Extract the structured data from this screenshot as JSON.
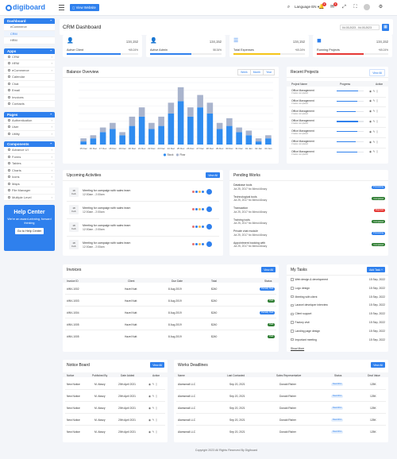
{
  "brand": {
    "name": "digiboard"
  },
  "topbar": {
    "view_website": "View Website",
    "language": "Language",
    "lang_code": "EN",
    "notif_count_1": "3",
    "notif_count_2": "4"
  },
  "sidebar": {
    "dashboard": {
      "title": "Dashboard",
      "items": [
        "eCommerce",
        "CRM",
        "HRM"
      ]
    },
    "apps": {
      "title": "Apps",
      "items": [
        "CRM",
        "HRM",
        "eCommerce",
        "Calendar",
        "Chat",
        "Email",
        "Invoices",
        "Contacts"
      ]
    },
    "pages": {
      "title": "Pages",
      "items": [
        "Authentication",
        "User",
        "Utility"
      ]
    },
    "components": {
      "title": "Components",
      "items": [
        "Advance UI",
        "Forms",
        "Tables",
        "Charts",
        "Icons",
        "Maps",
        "File Manager",
        "Multiple Level"
      ]
    }
  },
  "help": {
    "title": "Help Center",
    "text": "We're an award-winning, forward thinking",
    "button": "Go to Help Center"
  },
  "header": {
    "title": "CRM Dashboard",
    "daterange": "04.03.2023 - 04.03.2023"
  },
  "stats": [
    {
      "value": "134,152",
      "label": "Active Client",
      "pct": "+65.24%",
      "progress": 0.75,
      "color": "#2f80ed"
    },
    {
      "value": "134,152",
      "label": "Active Admin",
      "pct": "58.34%",
      "progress": 0.58,
      "color": "#2f80ed"
    },
    {
      "value": "134,152",
      "label": "Total Expenses",
      "pct": "+65.24%",
      "progress": 0.65,
      "color": "#f5c518"
    },
    {
      "value": "134,152",
      "label": "Running Projects",
      "pct": "+65.24%",
      "progress": 0.65,
      "color": "#e53935"
    }
  ],
  "balance": {
    "title": "Balance Overview",
    "tabs": [
      "Week",
      "Month",
      "Year"
    ]
  },
  "chart_data": {
    "type": "bar",
    "categories": [
      "15 Dec",
      "16 Dec",
      "17 Dec",
      "18 Dec",
      "19 Dec",
      "20 Dec",
      "21 Dec",
      "22 Dec",
      "23 Dec",
      "24 Dec",
      "25 Dec",
      "26 Dec",
      "27 Dec",
      "28 Dec",
      "29 Dec",
      "30 Dec",
      "31 Dec",
      "01 Jan",
      "02 Jan",
      "03 Jan"
    ],
    "series": [
      {
        "name": "Stock",
        "values": [
          2,
          4,
          8,
          10,
          6,
          12,
          18,
          10,
          12,
          20,
          28,
          18,
          24,
          20,
          10,
          12,
          8,
          6,
          2,
          4
        ]
      },
      {
        "name": "Flow",
        "values": [
          2,
          2,
          3,
          4,
          2,
          6,
          6,
          4,
          6,
          7,
          9,
          6,
          8,
          7,
          4,
          5,
          3,
          3,
          2,
          2
        ]
      }
    ],
    "stacked": true,
    "colors": [
      "#2f8cf0",
      "#a9b4cd"
    ],
    "ylim": [
      0,
      40
    ],
    "legend": "bottom"
  },
  "recent": {
    "title": "Recent Projects",
    "view_all": "View All",
    "cols": [
      "Project Name",
      "Progress",
      "Action"
    ],
    "rows": [
      {
        "name": "Office Management",
        "sub": "3 tasks completed",
        "progress": 0.8
      },
      {
        "name": "Office Management",
        "sub": "3 tasks completed",
        "progress": 0.75
      },
      {
        "name": "Office Management",
        "sub": "3 tasks completed",
        "progress": 0.7
      },
      {
        "name": "Office Management",
        "sub": "3 tasks completed",
        "progress": 0.8
      },
      {
        "name": "Office Management",
        "sub": "3 tasks completed",
        "progress": 0.75
      },
      {
        "name": "Office Management",
        "sub": "3 tasks completed",
        "progress": 0.7
      },
      {
        "name": "Office Management",
        "sub": "3 tasks completed",
        "progress": 0.75
      }
    ]
  },
  "activities": {
    "title": "Upcoming Activities",
    "view_all": "View All",
    "rows": [
      {
        "day": "18",
        "mon": "Feb",
        "title": "Meeting for campaign with sales team",
        "time": "12:00am - 2:00am"
      },
      {
        "day": "18",
        "mon": "Feb",
        "title": "Meeting for campaign with sales team",
        "time": "12:00am - 2:00am"
      },
      {
        "day": "18",
        "mon": "Feb",
        "title": "Meeting for campaign with sales team",
        "time": "12:00am - 2:00am"
      },
      {
        "day": "18",
        "mon": "Feb",
        "title": "Meeting for campaign with sales team",
        "time": "12:00am - 2:00am"
      }
    ]
  },
  "pending": {
    "title": "Pending Works",
    "rows": [
      {
        "title": "Database tools",
        "date": "Jul 25, 2017 for Alimul Alrazy",
        "status": "Processing",
        "color": "#2f80ed"
      },
      {
        "title": "Technological tools",
        "date": "Jul 25, 2017 for Alimul Alrazy",
        "status": "Completed",
        "color": "#2e7d32"
      },
      {
        "title": "Transaction",
        "date": "Jul 25, 2017 for Alimul Alrazy",
        "status": "Rejected",
        "color": "#e53935"
      },
      {
        "title": "Training tools",
        "date": "Jul 25, 2017 for Alimul Alrazy",
        "status": "Completed",
        "color": "#2e7d32"
      },
      {
        "title": "Private chat module",
        "date": "Jul 25, 2017 for Alimul Alrazy",
        "status": "Processing",
        "color": "#2f80ed"
      },
      {
        "title": "Appointment booking with",
        "date": "Jul 25, 2017 for Alimul Alrazy",
        "status": "Completed",
        "color": "#2e7d32"
      }
    ]
  },
  "invoices": {
    "title": "Invoices",
    "view_all": "View All",
    "cols": [
      "Invoice ID",
      "Client",
      "Due Date",
      "Total",
      "Status"
    ],
    "rows": [
      {
        "id": "#INV-1002",
        "client": "Hazel Nutt",
        "date": "8 Aug 2019",
        "total": "$240",
        "status": "Partially Paid",
        "color": "#2f80ed"
      },
      {
        "id": "#INV-1003",
        "client": "Hazel Nutt",
        "date": "8 Aug 2019",
        "total": "$240",
        "status": "Paid",
        "color": "#2e7d32"
      },
      {
        "id": "#INV-1004",
        "client": "Hazel Nutt",
        "date": "8 Aug 2019",
        "total": "$240",
        "status": "Partially Paid",
        "color": "#2f80ed"
      },
      {
        "id": "#INV-1005",
        "client": "Hazel Nutt",
        "date": "8 Aug 2019",
        "total": "$240",
        "status": "Paid",
        "color": "#2e7d32"
      },
      {
        "id": "#INV-1005",
        "client": "Hazel Nutt",
        "date": "8 Aug 2019",
        "total": "$240",
        "status": "Paid",
        "color": "#2e7d32"
      }
    ]
  },
  "tasks": {
    "title": "My Tasks",
    "add": "Add Task",
    "show_more": "Show More",
    "rows": [
      {
        "task": "Web design & development",
        "date": "15 Sep, 2022"
      },
      {
        "task": "Logo design",
        "date": "15 Sep, 2022"
      },
      {
        "task": "Meeting with client",
        "date": "15 Sep, 2022"
      },
      {
        "task": "Laravel developer interview",
        "date": "15 Sep, 2022"
      },
      {
        "task": "Client support",
        "date": "15 Sep, 2022"
      },
      {
        "task": "Factory visit",
        "date": "15 Sep, 2022"
      },
      {
        "task": "Landing page design",
        "date": "15 Sep, 2022"
      },
      {
        "task": "Important meeting",
        "date": "15 Sep, 2022"
      }
    ]
  },
  "notice": {
    "title": "Notice Board",
    "view_all": "View All",
    "cols": [
      "Notice",
      "Published By",
      "Date Added",
      "Action"
    ],
    "rows": [
      {
        "notice": "New Notice",
        "by": "M. Alrazy",
        "date": "20th April 2021"
      },
      {
        "notice": "New Notice",
        "by": "M. Alrazy",
        "date": "20th April 2021"
      },
      {
        "notice": "New Notice",
        "by": "M. Alrazy",
        "date": "20th April 2021"
      },
      {
        "notice": "New Notice",
        "by": "M. Alrazy",
        "date": "20th April 2021"
      },
      {
        "notice": "New Notice",
        "by": "M. Alrazy",
        "date": "20th April 2021"
      }
    ]
  },
  "deadlines": {
    "title": "Works Deadlines",
    "view_all": "View All",
    "cols": [
      "Name",
      "Last Contacted",
      "Sales Representative",
      "Status",
      "Deal Value"
    ],
    "rows": [
      {
        "name": "Alamsmall LLC",
        "contacted": "Sep 20, 2021",
        "rep": "Donald Risher",
        "status": "Deal Won",
        "value": "125K"
      },
      {
        "name": "Alamsmall LLC",
        "contacted": "Sep 20, 2021",
        "rep": "Donald Risher",
        "status": "Deal Won",
        "value": "125K"
      },
      {
        "name": "Alamsmall LLC",
        "contacted": "Sep 20, 2021",
        "rep": "Donald Risher",
        "status": "Deal Won",
        "value": "125K"
      },
      {
        "name": "Alamsmall LLC",
        "contacted": "Sep 20, 2021",
        "rep": "Donald Risher",
        "status": "Deal Won",
        "value": "125K"
      },
      {
        "name": "Alamsmall LLC",
        "contacted": "Sep 20, 2021",
        "rep": "Donald Risher",
        "status": "Deal Won",
        "value": "125K"
      }
    ]
  },
  "footer": {
    "text": "Copyright 2023 All Rights Reserved By Digiboard"
  }
}
